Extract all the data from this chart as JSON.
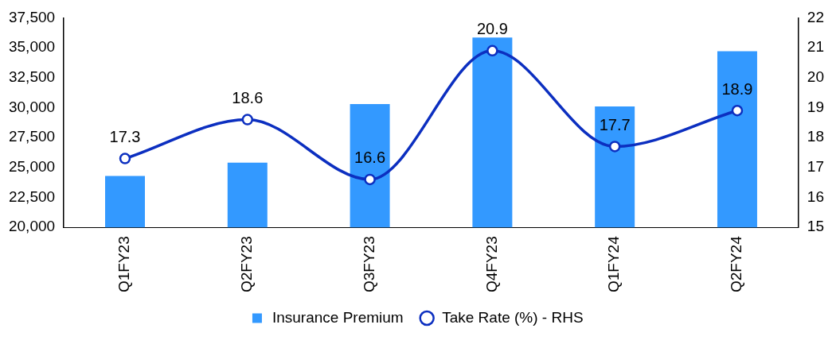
{
  "chart_data": {
    "type": "bar",
    "categories": [
      "Q1FY23",
      "Q2FY23",
      "Q3FY23",
      "Q4FY23",
      "Q1FY24",
      "Q2FY24"
    ],
    "series": [
      {
        "name": "Insurance Premium",
        "color": "#3399ff",
        "values": [
          24300,
          25400,
          30300,
          35850,
          30100,
          34700
        ]
      },
      {
        "name": "Take Rate (%) - RHS",
        "type": "line",
        "axis": "y2",
        "color": "#0c2fc0",
        "values": [
          17.3,
          18.6,
          16.6,
          20.9,
          17.7,
          18.9
        ],
        "value_labels": [
          "17.3",
          "18.6",
          "16.6",
          "20.9",
          "17.7",
          "18.9"
        ],
        "marker": "circle"
      }
    ],
    "ylim": [
      20000,
      37500
    ],
    "yticks": [
      {
        "value": 20000,
        "label": "20,000"
      },
      {
        "value": 22500,
        "label": "22,500"
      },
      {
        "value": 25000,
        "label": "25,000"
      },
      {
        "value": 27500,
        "label": "27,500"
      },
      {
        "value": 30000,
        "label": "30,000"
      },
      {
        "value": 32500,
        "label": "32,500"
      },
      {
        "value": 35000,
        "label": "35,000"
      },
      {
        "value": 37500,
        "label": "37,500"
      }
    ],
    "y2lim": [
      15,
      22
    ],
    "y2ticks": [
      15,
      16,
      17,
      18,
      19,
      20,
      21,
      22
    ],
    "grid": false,
    "legend": "bottom"
  }
}
